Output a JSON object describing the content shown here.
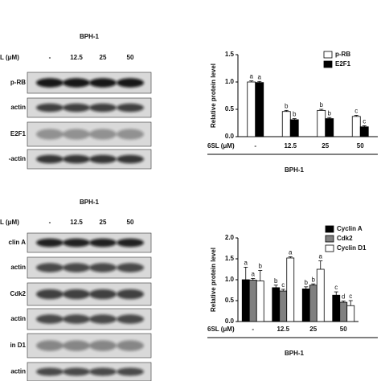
{
  "chart_data": [
    {
      "type": "bar",
      "categories": [
        "-",
        "12.5",
        "25",
        "50"
      ],
      "x_label": "6SL (μM)",
      "group_label": "BPH-1",
      "y_label": "Relative protein level",
      "ylim": [
        0,
        1.5
      ],
      "yticks": [
        {
          "value": 0,
          "label": "0.0"
        },
        {
          "value": 0.5,
          "label": "0.5"
        },
        {
          "value": 1,
          "label": "1.0"
        },
        {
          "value": 1.5,
          "label": "1.5"
        }
      ],
      "series": [
        {
          "name": "p-RB",
          "color": "#ffffff",
          "values": [
            1.0,
            0.46,
            0.48,
            0.37
          ],
          "errors": [
            0.02,
            0.02,
            0.02,
            0.02
          ],
          "sig_labels": [
            "a",
            "b",
            "b",
            "c"
          ]
        },
        {
          "name": "E2F1",
          "color": "#000000",
          "values": [
            0.99,
            0.31,
            0.33,
            0.18
          ],
          "errors": [
            0.02,
            0.02,
            0.02,
            0.02
          ],
          "sig_labels": [
            "a",
            "b",
            "b",
            "c"
          ]
        }
      ]
    },
    {
      "type": "bar",
      "categories": [
        "-",
        "12.5",
        "25",
        "50"
      ],
      "x_label": "6SL (μM)",
      "group_label": "BPH-1",
      "y_label": "Relative protein level",
      "ylim": [
        0,
        2
      ],
      "yticks": [
        {
          "value": 0,
          "label": "0.0"
        },
        {
          "value": 0.5,
          "label": "0.5"
        },
        {
          "value": 1,
          "label": "1.0"
        },
        {
          "value": 1.5,
          "label": "1.5"
        },
        {
          "value": 2,
          "label": "2.0"
        }
      ],
      "series": [
        {
          "name": "Cyclin A",
          "color": "#000000",
          "values": [
            1.0,
            0.81,
            0.78,
            0.63
          ],
          "errors": [
            0.3,
            0.06,
            0.05,
            0.08
          ],
          "sig_labels": [
            "a",
            "b",
            "b",
            "c"
          ]
        },
        {
          "name": "Cdk2",
          "color": "#808080",
          "values": [
            0.99,
            0.73,
            0.87,
            0.46
          ],
          "errors": [
            0.04,
            0.04,
            0.03,
            0.03
          ],
          "sig_labels": [
            "a",
            "c",
            "b",
            "d"
          ]
        },
        {
          "name": "Cyclin D1",
          "color": "#ffffff",
          "values": [
            0.97,
            1.52,
            1.25,
            0.38
          ],
          "errors": [
            0.25,
            0.03,
            0.2,
            0.12
          ],
          "sig_labels": [
            "b",
            "a",
            "a",
            "c"
          ]
        }
      ]
    }
  ],
  "blots": [
    {
      "title": "BPH-1",
      "condition_label": "L (μM)",
      "lanes": [
        "-",
        "12.5",
        "25",
        "50"
      ],
      "rows": [
        "p-RB",
        "actin",
        "E2F1",
        "-actin"
      ]
    },
    {
      "title": "BPH-1",
      "condition_label": "L (μM)",
      "lanes": [
        "-",
        "12.5",
        "25",
        "50"
      ],
      "rows": [
        "clin A",
        "actin",
        "Cdk2",
        "actin",
        "in D1",
        "actin"
      ]
    }
  ]
}
